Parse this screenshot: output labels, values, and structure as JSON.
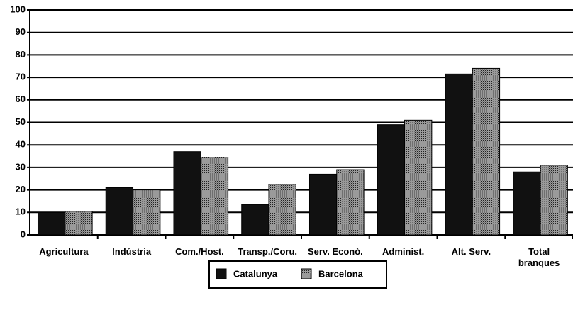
{
  "chart_data": {
    "type": "bar",
    "categories": [
      "Agricultura",
      "Indústria",
      "Com./Host.",
      "Transp./Coru.",
      "Serv. Econò.",
      "Administ.",
      "Alt. Serv.",
      "Total branques"
    ],
    "series": [
      {
        "name": "Catalunya",
        "color": "#111111",
        "values": [
          10,
          21,
          37,
          13.5,
          27,
          49,
          71.5,
          28
        ]
      },
      {
        "name": "Barcelona",
        "color": "#6a6a6a",
        "values": [
          10.5,
          20,
          34.5,
          22.5,
          29,
          51,
          74,
          31
        ]
      }
    ],
    "ylim": [
      0,
      100
    ],
    "yticks": [
      0,
      10,
      20,
      30,
      40,
      50,
      60,
      70,
      80,
      90,
      100
    ],
    "grid": true,
    "legend": "bottom"
  }
}
